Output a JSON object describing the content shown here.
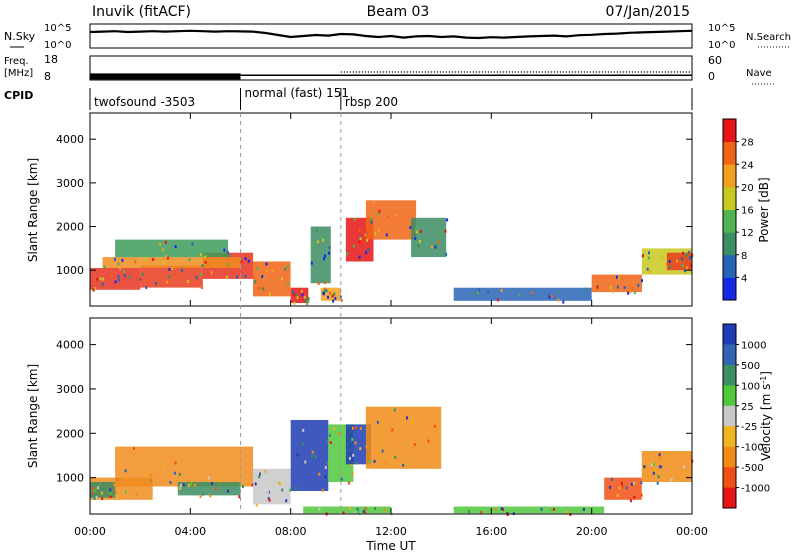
{
  "header": {
    "station": "Inuvik (fitACF)",
    "beam": "Beam 03",
    "date": "07/Jan/2015"
  },
  "top_panels": {
    "nsky": {
      "label": "N.Sky",
      "left_ticks": [
        "10^5",
        "10^0"
      ],
      "right_label": "N.Search",
      "right_ticks": [
        "10^5",
        "10^0"
      ],
      "series_x_hours": [
        0,
        0.5,
        1,
        1.5,
        2,
        2.5,
        3,
        3.5,
        4,
        4.5,
        5,
        5.5,
        6,
        6.5,
        7,
        7.5,
        8,
        8.5,
        9,
        9.5,
        10,
        10.5,
        11,
        11.5,
        12,
        12.5,
        13,
        13.5,
        14,
        14.5,
        15,
        15.5,
        16,
        16.5,
        17,
        17.5,
        18,
        18.5,
        19,
        19.5,
        20,
        20.5,
        21,
        21.5,
        22,
        22.5,
        23,
        23.5,
        24
      ],
      "series_y_fraction": [
        0.7,
        0.72,
        0.74,
        0.7,
        0.72,
        0.74,
        0.72,
        0.74,
        0.76,
        0.74,
        0.72,
        0.74,
        0.73,
        0.72,
        0.65,
        0.55,
        0.45,
        0.5,
        0.55,
        0.52,
        0.6,
        0.58,
        0.5,
        0.45,
        0.5,
        0.42,
        0.48,
        0.5,
        0.45,
        0.48,
        0.42,
        0.4,
        0.44,
        0.42,
        0.45,
        0.48,
        0.5,
        0.52,
        0.48,
        0.54,
        0.56,
        0.6,
        0.62,
        0.66,
        0.68,
        0.7,
        0.72,
        0.74,
        0.76
      ]
    },
    "freq": {
      "label_line1": "Freq.",
      "label_line2": "[MHz]",
      "left_ticks": [
        "18",
        "8"
      ],
      "right_label": "Nave",
      "right_ticks": [
        "60",
        "0"
      ],
      "freq_mhz_before_0600": 9.5,
      "freq_mhz_after_0600": 10.0,
      "nave_after_1000": 20
    },
    "cpid": {
      "label": "CPID",
      "segments": [
        {
          "start_hour": 0,
          "end_hour": 6,
          "name": "twofsound -3503"
        },
        {
          "start_hour": 6,
          "end_hour": 10,
          "name": "normal (fast) 151"
        },
        {
          "start_hour": 10,
          "end_hour": 24,
          "name": "rbsp 200"
        }
      ]
    }
  },
  "chart_data": [
    {
      "type": "heatmap",
      "quantity": "Power",
      "ylabel": "Slant Range [km]",
      "yticks": [
        1000,
        2000,
        3000,
        4000
      ],
      "ylim": [
        180,
        4600
      ],
      "xlim_hours": [
        0,
        24
      ],
      "colorbar": {
        "label": "Power [dB]",
        "ticks": [
          "4",
          "8",
          "12",
          "16",
          "20",
          "24",
          "28"
        ],
        "colors": [
          "#1428e6",
          "#2864b4",
          "#3c8c64",
          "#50b450",
          "#c8c81e",
          "#f0a01e",
          "#f06414",
          "#e61414"
        ]
      },
      "echo_regions": [
        {
          "x0": 0.0,
          "x1": 2.0,
          "r0": 550,
          "r1": 1050,
          "color": "#e6321e"
        },
        {
          "x0": 2.0,
          "x1": 4.5,
          "r0": 600,
          "r1": 1100,
          "color": "#e63c1e"
        },
        {
          "x0": 4.5,
          "x1": 6.5,
          "r0": 800,
          "r1": 1400,
          "color": "#e6321e"
        },
        {
          "x0": 0.5,
          "x1": 6.0,
          "r0": 1050,
          "r1": 1300,
          "color": "#f08c1e"
        },
        {
          "x0": 1.0,
          "x1": 5.5,
          "r0": 1300,
          "r1": 1700,
          "color": "#3c9c5a"
        },
        {
          "x0": 6.5,
          "x1": 8.0,
          "r0": 400,
          "r1": 1200,
          "color": "#f06414"
        },
        {
          "x0": 8.0,
          "x1": 8.7,
          "r0": 250,
          "r1": 600,
          "color": "#e61414"
        },
        {
          "x0": 8.8,
          "x1": 9.6,
          "r0": 700,
          "r1": 2000,
          "color": "#3c8c64"
        },
        {
          "x0": 9.2,
          "x1": 10.0,
          "r0": 300,
          "r1": 600,
          "color": "#f0a01e"
        },
        {
          "x0": 10.2,
          "x1": 11.3,
          "r0": 1200,
          "r1": 2200,
          "color": "#e61414"
        },
        {
          "x0": 11.0,
          "x1": 13.0,
          "r0": 1700,
          "r1": 2600,
          "color": "#f06414"
        },
        {
          "x0": 12.8,
          "x1": 14.2,
          "r0": 1300,
          "r1": 2200,
          "color": "#3c8c64"
        },
        {
          "x0": 14.5,
          "x1": 20.0,
          "r0": 300,
          "r1": 600,
          "color": "#2864b4"
        },
        {
          "x0": 20.0,
          "x1": 22.0,
          "r0": 500,
          "r1": 900,
          "color": "#f06414"
        },
        {
          "x0": 22.0,
          "x1": 24.0,
          "r0": 900,
          "r1": 1500,
          "color": "#c8c81e"
        },
        {
          "x0": 23.0,
          "x1": 24.0,
          "r0": 1000,
          "r1": 1400,
          "color": "#e63c1e"
        }
      ]
    },
    {
      "type": "heatmap",
      "quantity": "Velocity",
      "ylabel": "Slant Range [km]",
      "yticks": [
        1000,
        2000,
        3000,
        4000
      ],
      "ylim": [
        180,
        4600
      ],
      "xlim_hours": [
        0,
        24
      ],
      "xlabel": "Time UT",
      "xticks": [
        "00:00",
        "04:00",
        "08:00",
        "12:00",
        "16:00",
        "20:00",
        "00:00"
      ],
      "colorbar": {
        "label": "Velocity [m s^-1]",
        "ticks": [
          "1000",
          "500",
          "100",
          "25",
          "-25",
          "-100",
          "-500",
          "-1000"
        ],
        "colors": [
          "#1e3cb4",
          "#3264b4",
          "#3c8c64",
          "#50c83c",
          "#c8c8c8",
          "#f0b41e",
          "#f08c14",
          "#f05014",
          "#e61414"
        ]
      },
      "echo_regions": [
        {
          "x0": 0.0,
          "x1": 2.5,
          "r0": 500,
          "r1": 1000,
          "color": "#f08c1e"
        },
        {
          "x0": 0.0,
          "x1": 1.0,
          "r0": 550,
          "r1": 900,
          "color": "#3c8c64"
        },
        {
          "x0": 1.0,
          "x1": 6.5,
          "r0": 800,
          "r1": 1700,
          "color": "#f08c1e"
        },
        {
          "x0": 3.5,
          "x1": 6.0,
          "r0": 600,
          "r1": 900,
          "color": "#3c8c64"
        },
        {
          "x0": 6.5,
          "x1": 8.0,
          "r0": 400,
          "r1": 1200,
          "color": "#c8c8c8"
        },
        {
          "x0": 8.0,
          "x1": 9.5,
          "r0": 700,
          "r1": 2300,
          "color": "#1e3cb4"
        },
        {
          "x0": 9.5,
          "x1": 10.5,
          "r0": 900,
          "r1": 2200,
          "color": "#50c83c"
        },
        {
          "x0": 10.2,
          "x1": 11.2,
          "r0": 1300,
          "r1": 2200,
          "color": "#1e3cb4"
        },
        {
          "x0": 11.0,
          "x1": 14.0,
          "r0": 1200,
          "r1": 2600,
          "color": "#f08c14"
        },
        {
          "x0": 8.5,
          "x1": 12.0,
          "r0": 200,
          "r1": 350,
          "color": "#50c83c"
        },
        {
          "x0": 14.5,
          "x1": 20.5,
          "r0": 200,
          "r1": 350,
          "color": "#50c83c"
        },
        {
          "x0": 20.5,
          "x1": 22.0,
          "r0": 500,
          "r1": 1000,
          "color": "#f05014"
        },
        {
          "x0": 22.0,
          "x1": 24.0,
          "r0": 900,
          "r1": 1600,
          "color": "#f08c14"
        }
      ]
    }
  ]
}
